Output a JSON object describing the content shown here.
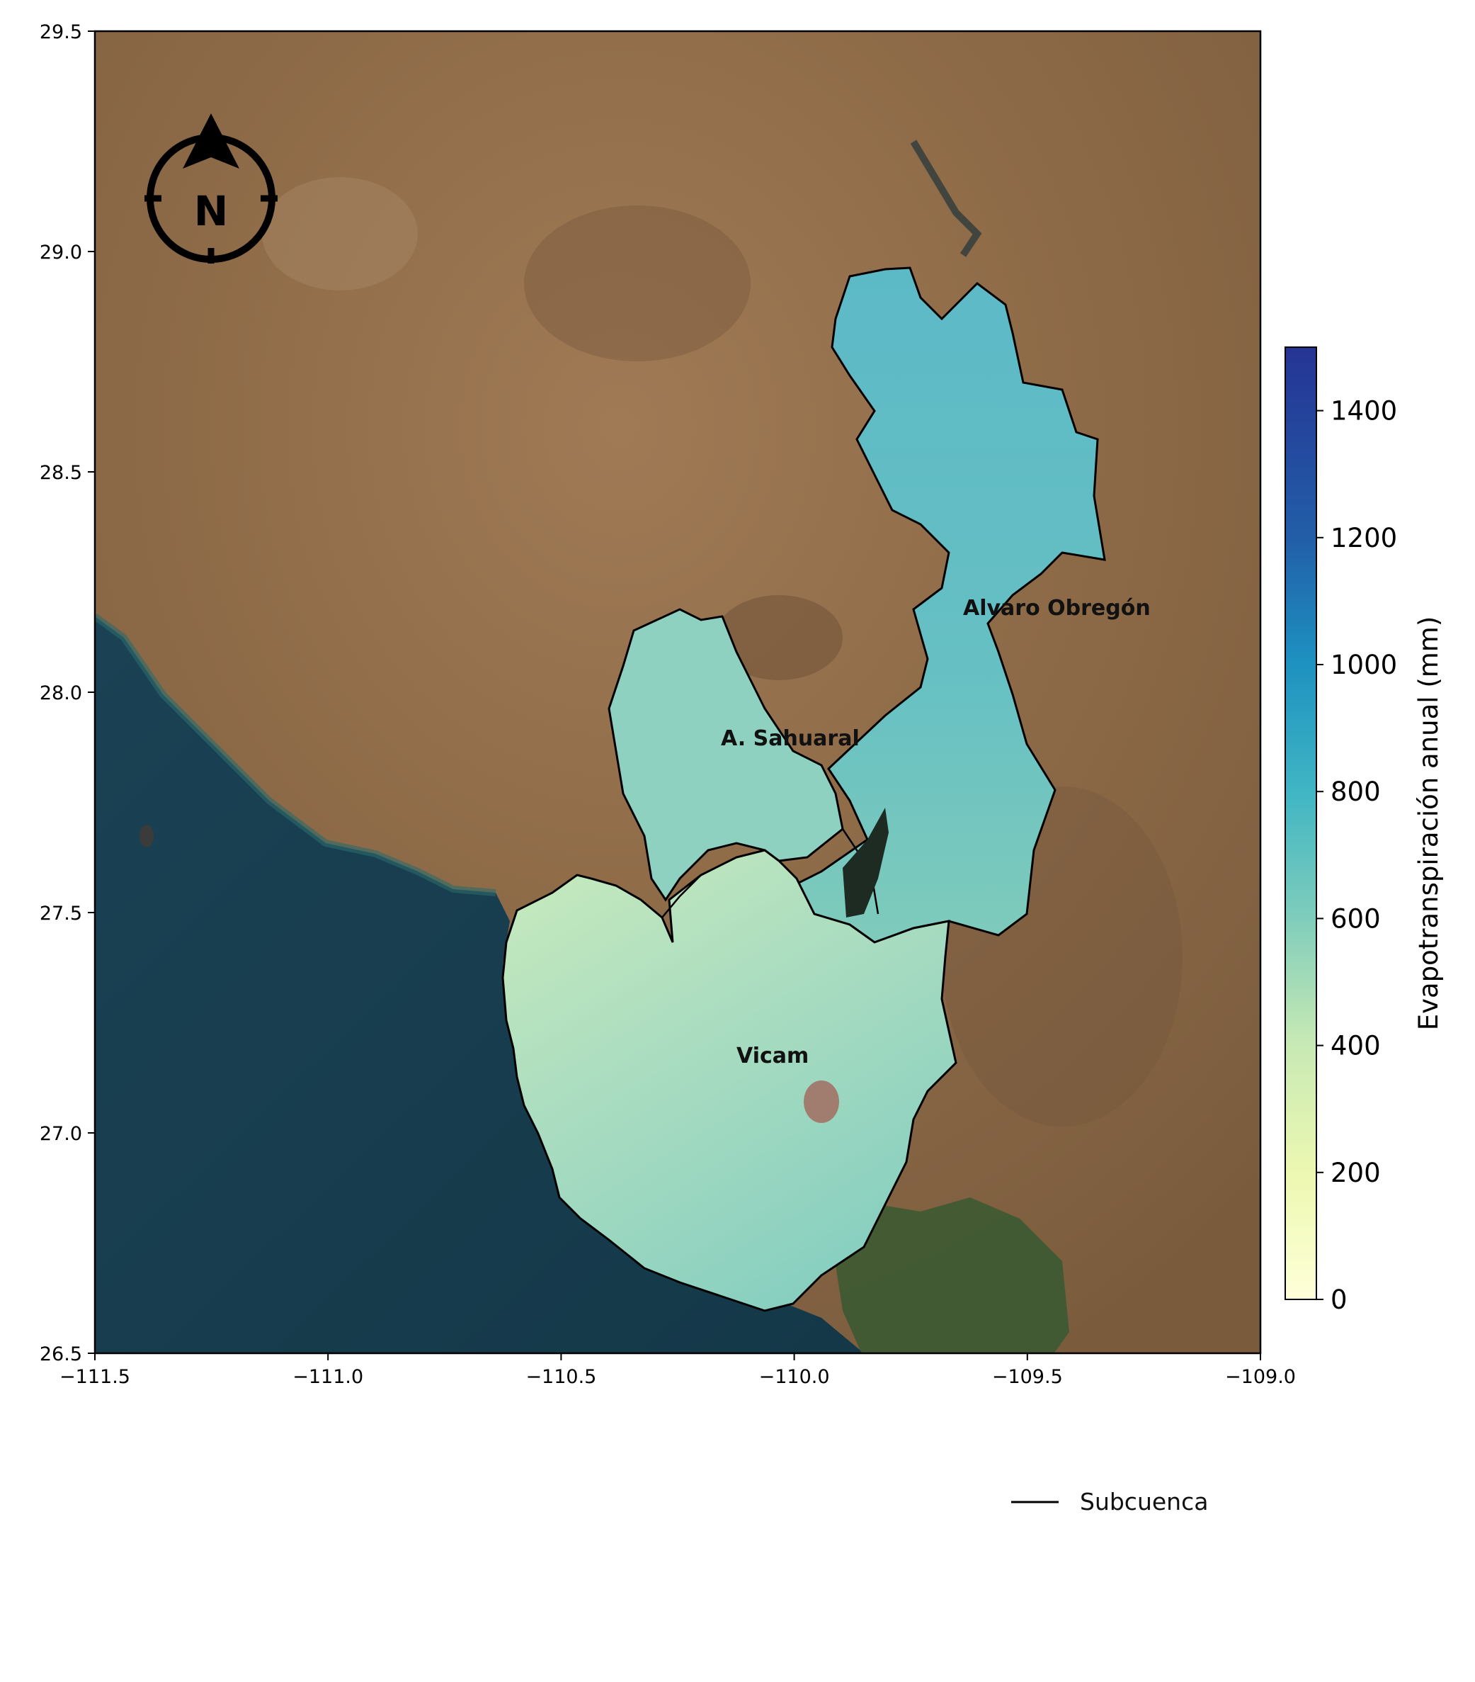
{
  "map": {
    "x_ticks": [
      "−111.5",
      "−111.0",
      "−110.5",
      "−110.0",
      "−109.5",
      "−109.0"
    ],
    "y_ticks": [
      "29.5",
      "29.0",
      "28.5",
      "28.0",
      "27.5",
      "27.0",
      "26.5"
    ],
    "x_range": [
      -111.5,
      -109.0
    ],
    "y_range": [
      26.5,
      29.5
    ],
    "regions": [
      {
        "id": "alvaro-obregon",
        "label": "Alvaro Obregón"
      },
      {
        "id": "a-sahuaral",
        "label": "A. Sahuaral"
      },
      {
        "id": "vicam",
        "label": "Vicam"
      }
    ],
    "north_arrow_letter": "N",
    "legend": {
      "line_label": "Subcuenca",
      "placement": "lower-right"
    },
    "colorbar": {
      "label": "Evapotranspiración anual (mm)",
      "ticks": [
        "0",
        "200",
        "400",
        "600",
        "800",
        "1000",
        "1200",
        "1400"
      ],
      "range": [
        0,
        1500
      ],
      "colormap": "YlGnBu",
      "colors": [
        "#ffffd9",
        "#edf8b1",
        "#c7e9b4",
        "#7fcdbb",
        "#41b6c4",
        "#1d91c0",
        "#225ea8",
        "#253494"
      ]
    },
    "basemap_colors": {
      "land": "#8c6a4a",
      "sea": "#1b4559",
      "irrigated": "#3c5a32"
    }
  }
}
